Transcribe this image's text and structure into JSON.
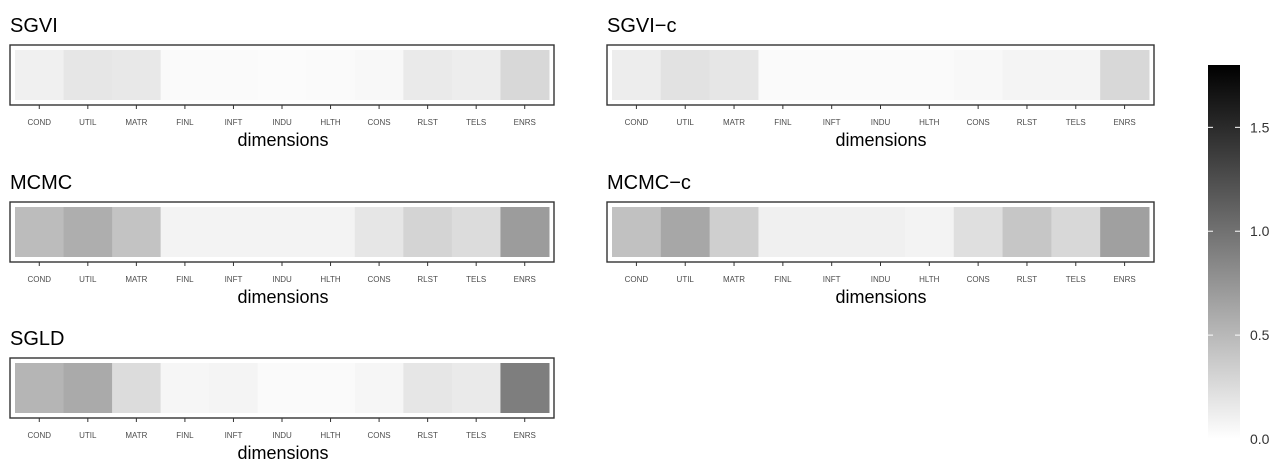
{
  "chart_data": {
    "type": "heatmap",
    "xlabel": "dimensions",
    "categories": [
      "COND",
      "UTIL",
      "MATR",
      "FINL",
      "INFT",
      "INDU",
      "HLTH",
      "CONS",
      "RLST",
      "TELS",
      "ENRS"
    ],
    "panels": [
      {
        "title": "SGVI",
        "values": [
          0.08,
          0.15,
          0.14,
          0.01,
          0.01,
          0.0,
          0.01,
          0.02,
          0.12,
          0.1,
          0.25
        ]
      },
      {
        "title": "SGVI−c",
        "values": [
          0.1,
          0.18,
          0.15,
          0.01,
          0.01,
          0.01,
          0.01,
          0.02,
          0.05,
          0.05,
          0.25
        ]
      },
      {
        "title": "MCMC",
        "values": [
          0.45,
          0.55,
          0.4,
          0.06,
          0.06,
          0.06,
          0.06,
          0.15,
          0.28,
          0.22,
          0.68
        ]
      },
      {
        "title": "MCMC−c",
        "values": [
          0.42,
          0.6,
          0.32,
          0.08,
          0.08,
          0.08,
          0.06,
          0.2,
          0.38,
          0.25,
          0.65
        ]
      },
      {
        "title": "SGLD",
        "values": [
          0.5,
          0.58,
          0.22,
          0.04,
          0.05,
          0.01,
          0.01,
          0.04,
          0.15,
          0.12,
          0.9
        ]
      }
    ],
    "colorbar": {
      "range": [
        0,
        1.8
      ],
      "ticks": [
        "0.0",
        "0.5",
        "1.0",
        "1.5"
      ],
      "low_color": "#ffffff",
      "high_color": "#000000"
    }
  }
}
